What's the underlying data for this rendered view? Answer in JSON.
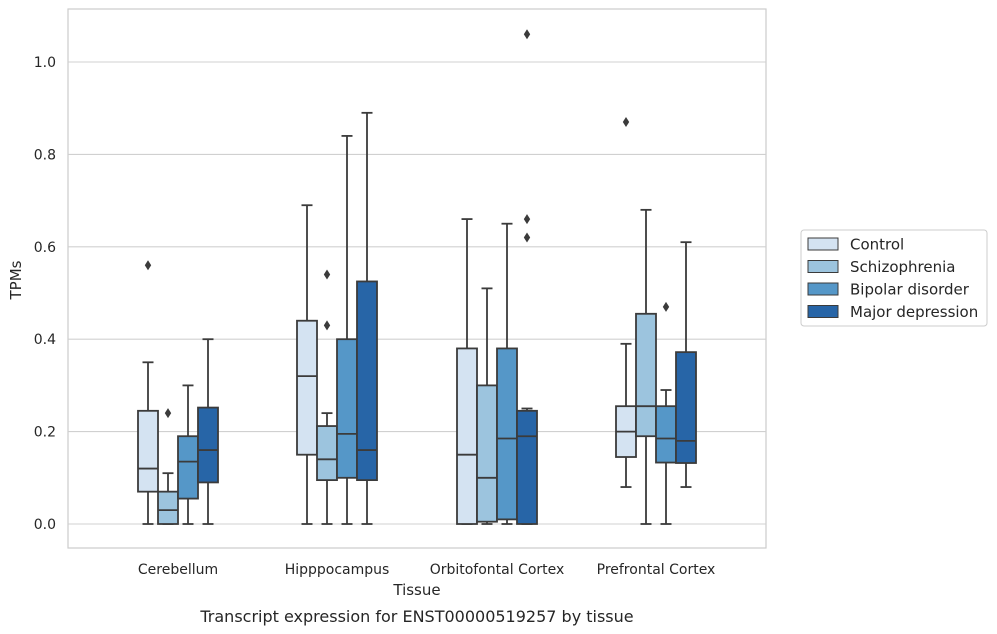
{
  "chart_data": {
    "type": "box",
    "title": "",
    "caption": "Transcript expression for ENST00000519257 by tissue",
    "xlabel": "Tissue",
    "ylabel": "TPMs",
    "ylim": [
      -0.05,
      1.12
    ],
    "yticks": [
      "0.0",
      "0.2",
      "0.4",
      "0.6",
      "0.8",
      "1.0"
    ],
    "grid": "horizontal",
    "legend_position": "right",
    "categories": [
      "Cerebellum",
      "Hipppocampus",
      "Orbitofontal Cortex",
      "Prefrontal Cortex"
    ],
    "series": [
      {
        "name": "Control",
        "color": "#d4e3f2",
        "boxes": [
          {
            "q1": 0.07,
            "median": 0.12,
            "q3": 0.245,
            "whislo": 0.0,
            "whishi": 0.35,
            "fliers": [
              0.56
            ]
          },
          {
            "q1": 0.15,
            "median": 0.32,
            "q3": 0.44,
            "whislo": 0.0,
            "whishi": 0.69,
            "fliers": []
          },
          {
            "q1": 0.0,
            "median": 0.15,
            "q3": 0.38,
            "whislo": 0.0,
            "whishi": 0.66,
            "fliers": []
          },
          {
            "q1": 0.145,
            "median": 0.2,
            "q3": 0.255,
            "whislo": 0.08,
            "whishi": 0.39,
            "fliers": [
              0.87
            ]
          }
        ]
      },
      {
        "name": "Schizophrenia",
        "color": "#9cc4de",
        "boxes": [
          {
            "q1": 0.0,
            "median": 0.03,
            "q3": 0.07,
            "whislo": 0.0,
            "whishi": 0.11,
            "fliers": [
              0.24
            ]
          },
          {
            "q1": 0.095,
            "median": 0.14,
            "q3": 0.212,
            "whislo": 0.0,
            "whishi": 0.24,
            "fliers": [
              0.43,
              0.54
            ]
          },
          {
            "q1": 0.005,
            "median": 0.1,
            "q3": 0.3,
            "whislo": 0.0,
            "whishi": 0.51,
            "fliers": []
          },
          {
            "q1": 0.19,
            "median": 0.255,
            "q3": 0.455,
            "whislo": 0.0,
            "whishi": 0.68,
            "fliers": []
          }
        ]
      },
      {
        "name": "Bipolar disorder",
        "color": "#5597c8",
        "boxes": [
          {
            "q1": 0.055,
            "median": 0.135,
            "q3": 0.19,
            "whislo": 0.0,
            "whishi": 0.3,
            "fliers": []
          },
          {
            "q1": 0.1,
            "median": 0.195,
            "q3": 0.4,
            "whislo": 0.0,
            "whishi": 0.84,
            "fliers": []
          },
          {
            "q1": 0.01,
            "median": 0.185,
            "q3": 0.38,
            "whislo": 0.0,
            "whishi": 0.65,
            "fliers": []
          },
          {
            "q1": 0.133,
            "median": 0.185,
            "q3": 0.255,
            "whislo": 0.0,
            "whishi": 0.29,
            "fliers": [
              0.47
            ]
          }
        ]
      },
      {
        "name": "Major depression",
        "color": "#2765a7",
        "boxes": [
          {
            "q1": 0.09,
            "median": 0.16,
            "q3": 0.252,
            "whislo": 0.0,
            "whishi": 0.4,
            "fliers": []
          },
          {
            "q1": 0.095,
            "median": 0.16,
            "q3": 0.525,
            "whislo": 0.0,
            "whishi": 0.89,
            "fliers": []
          },
          {
            "q1": 0.0,
            "median": 0.19,
            "q3": 0.245,
            "whislo": 0.0,
            "whishi": 0.25,
            "fliers": [
              0.62,
              0.66,
              1.06
            ]
          },
          {
            "q1": 0.132,
            "median": 0.18,
            "q3": 0.372,
            "whislo": 0.08,
            "whishi": 0.61,
            "fliers": []
          }
        ]
      }
    ]
  }
}
